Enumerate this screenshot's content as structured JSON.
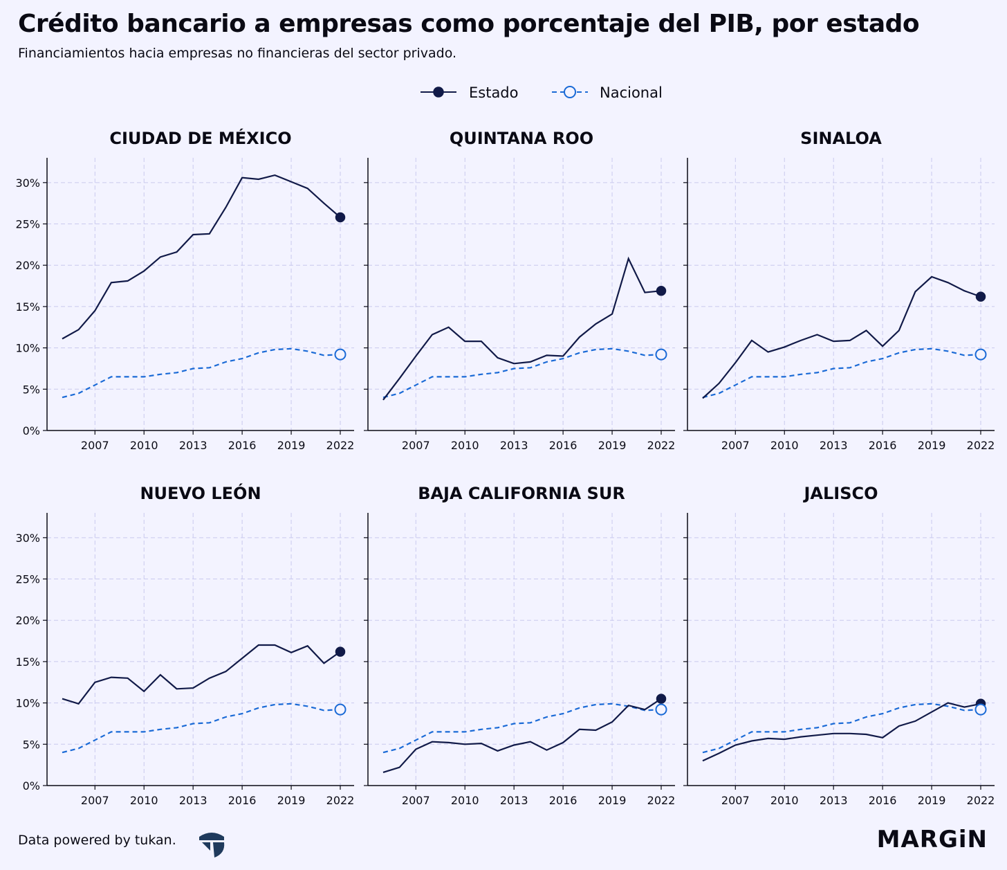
{
  "title": "Crédito bancario a empresas como porcentaje del PIB, por estado",
  "subtitle": "Financiamientos hacia empresas no financieras del sector privado.",
  "legend": {
    "estado": "Estado",
    "nacional": "Nacional"
  },
  "footer": {
    "credit": "Data powered by tukan.",
    "brand": "MARGiN"
  },
  "colors": {
    "estado": "#111a48",
    "nacional": "#1a6ad6",
    "background": "#f3f3ff",
    "grid": "#c9c9ee"
  },
  "chart_data": {
    "type": "line",
    "layout": "small-multiples 2x3",
    "x": [
      2005,
      2006,
      2007,
      2008,
      2009,
      2010,
      2011,
      2012,
      2013,
      2014,
      2015,
      2016,
      2017,
      2018,
      2019,
      2020,
      2021,
      2022
    ],
    "xticks": [
      2007,
      2010,
      2013,
      2016,
      2019,
      2022
    ],
    "ylim": [
      0,
      33
    ],
    "yticks": [
      0,
      5,
      10,
      15,
      20,
      25,
      30
    ],
    "ytick_labels": [
      "0%",
      "5%",
      "10%",
      "15%",
      "20%",
      "25%",
      "30%"
    ],
    "grid": true,
    "legend_position": "top-center",
    "nacional": [
      4.0,
      4.5,
      5.5,
      6.5,
      6.5,
      6.5,
      6.8,
      7.0,
      7.5,
      7.6,
      8.3,
      8.7,
      9.4,
      9.8,
      9.9,
      9.6,
      9.1,
      9.2
    ],
    "panels": [
      {
        "title": "CIUDAD DE MÉXICO",
        "estado": [
          11.1,
          12.2,
          14.5,
          17.9,
          18.1,
          19.3,
          21.0,
          21.6,
          23.7,
          23.8,
          27.0,
          30.6,
          30.4,
          30.9,
          30.1,
          29.3,
          27.5,
          25.8
        ]
      },
      {
        "title": "QUINTANA ROO",
        "estado": [
          3.7,
          6.3,
          9.0,
          11.6,
          12.5,
          10.8,
          10.8,
          8.8,
          8.1,
          8.3,
          9.1,
          9.0,
          11.3,
          12.9,
          14.1,
          20.8,
          16.7,
          16.9
        ]
      },
      {
        "title": "SINALOA",
        "estado": [
          3.9,
          5.7,
          8.2,
          10.9,
          9.5,
          10.1,
          10.9,
          11.6,
          10.8,
          10.9,
          12.1,
          10.2,
          12.1,
          16.8,
          18.6,
          17.9,
          16.9,
          16.2
        ]
      },
      {
        "title": "NUEVO LEÓN",
        "estado": [
          10.5,
          9.9,
          12.5,
          13.1,
          13.0,
          11.4,
          13.4,
          11.7,
          11.8,
          13.0,
          13.8,
          15.4,
          17.0,
          17.0,
          16.1,
          16.9,
          14.8,
          16.2
        ]
      },
      {
        "title": "BAJA CALIFORNIA SUR",
        "estado": [
          1.6,
          2.2,
          4.4,
          5.3,
          5.2,
          5.0,
          5.1,
          4.2,
          4.9,
          5.3,
          4.3,
          5.2,
          6.8,
          6.7,
          7.7,
          9.7,
          9.2,
          10.5
        ]
      },
      {
        "title": "JALISCO",
        "estado": [
          3.0,
          3.9,
          4.9,
          5.4,
          5.7,
          5.6,
          5.9,
          6.1,
          6.3,
          6.3,
          6.2,
          5.8,
          7.2,
          7.8,
          8.9,
          10.0,
          9.5,
          9.9
        ]
      }
    ]
  }
}
